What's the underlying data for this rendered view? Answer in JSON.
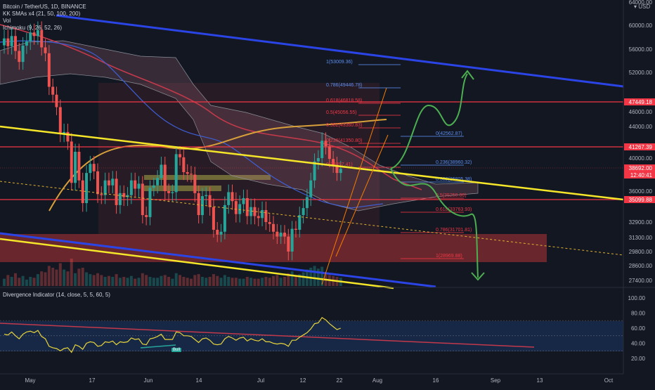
{
  "legend": {
    "symbol": "Bitcoin / TetherUS, 1D, BINANCE",
    "smas": "KK SMAs x4 (21, 50, 100, 200)",
    "vol": "Vol",
    "ichimoku": "Ichimoku (9, 26, 52, 26)",
    "divergence": "Divergence Indicator (14, close, 5, 5, 60, 5)"
  },
  "currency": "USD",
  "bull_tag": "Bull",
  "colors": {
    "background": "#131722",
    "up": "#26a69a",
    "down": "#ef5350",
    "trend_yellow": "#f5e62a",
    "trend_blue": "#2b44e6",
    "arrow_green": "#4caf50",
    "red_line": "#f23645",
    "sma_orange": "#d8a03a",
    "sma_blue": "#3e5fd6",
    "sma_red": "#c2394b",
    "rsi_line": "#e5d33b",
    "fib_text": "#f23645",
    "fib_blue": "#5b8def"
  },
  "chart_data": [
    {
      "type": "candlestick",
      "title": "Bitcoin / TetherUS, 1D, BINANCE",
      "y_axis_ticks": [
        27400,
        28600,
        29800,
        31300,
        32900,
        35099.88,
        36000,
        38692,
        40000,
        41267.39,
        44000,
        46000,
        47449.18,
        52000,
        56000,
        60000,
        64000
      ],
      "y_axis_labels": [
        "27400.00",
        "28600.00",
        "29800.00",
        "31300.00",
        "32900.00",
        "35099.88",
        "36000.00",
        "38692.00",
        "40000.00",
        "41267.39",
        "44000.00",
        "46000.00",
        "47449.18",
        "52000.00",
        "56000.00",
        "60000.00",
        "64000.00"
      ],
      "x_axis_labels": [
        "May",
        "17",
        "Jun",
        "14",
        "Jul",
        "12",
        "22",
        "Aug",
        "16",
        "Sep",
        "13",
        "Oct"
      ],
      "price_tags": [
        {
          "label": "47449.18",
          "color": "#f23645"
        },
        {
          "label": "41267.39",
          "color": "#f23645"
        },
        {
          "label": "38692.00",
          "color": "#f23645"
        },
        {
          "label": "12:40:41",
          "color": "#f23645"
        },
        {
          "label": "35099.88",
          "color": "#f23645"
        }
      ],
      "horizontal_levels": [
        47449.18,
        41267.39,
        35099.88
      ],
      "fib_levels_down": [
        {
          "label": "1(53009.36)",
          "value": 53009.36
        },
        {
          "label": "0.786(49446.78)",
          "value": 49446.78
        },
        {
          "label": "0.618(46818.58)",
          "value": 46818.58
        },
        {
          "label": "0.5(45056.55)",
          "value": 45056.55
        },
        {
          "label": "0.382(43360.83)",
          "value": 43360.83
        },
        {
          "label": "0.236(41350.80)",
          "value": 41350.8
        },
        {
          "label": "0(38297.41)",
          "value": 38297.41
        }
      ],
      "fib_levels_up": [
        {
          "label": "0(42562.87)",
          "value": 42562.87
        },
        {
          "label": "0.236(38960.32)",
          "value": 38960.32
        },
        {
          "label": "0.382(36805.38)",
          "value": 36805.38
        },
        {
          "label": "0.5(35250.86)",
          "value": 35250.86
        },
        {
          "label": "0.618(33763.93)",
          "value": 33763.93
        },
        {
          "label": "0.786(31701.81)",
          "value": 31701.81
        },
        {
          "label": "1(28969.88)",
          "value": 28969.88
        }
      ],
      "close_series": [
        57800,
        56500,
        58200,
        55700,
        53800,
        56600,
        57300,
        58800,
        58200,
        59200,
        56300,
        55300,
        49800,
        48600,
        46700,
        43100,
        43300,
        42100,
        37000,
        40800,
        37300,
        34800,
        38200,
        39300,
        38400,
        35700,
        35600,
        37300,
        36700,
        37500,
        34600,
        35800,
        35400,
        35600,
        37300,
        36300,
        36900,
        33600,
        33400,
        36400,
        36700,
        37600,
        39200,
        36000,
        35800,
        35900,
        40500,
        40100,
        38300,
        38100,
        38000,
        35800,
        33600,
        35500,
        35600,
        34400,
        32100,
        31600,
        31900,
        34600,
        35900,
        35000,
        33700,
        34700,
        35300,
        33500,
        34400,
        33500,
        33300,
        34100,
        32900,
        32700,
        31900,
        31400,
        31800,
        31400,
        29800,
        32200,
        32100,
        33600,
        34300,
        35400,
        37300,
        39600,
        40000,
        42200,
        41500,
        39900,
        39200,
        38200,
        38700
      ]
    },
    {
      "type": "line",
      "title": "Divergence Indicator (14, close, 5, 5, 60, 5)",
      "y_axis_labels": [
        "100.00",
        "80.00",
        "60.00",
        "40.00",
        "20.00"
      ],
      "bands": [
        70,
        50,
        30
      ],
      "series": [
        {
          "values": [
            52,
            51,
            55,
            50,
            46,
            52,
            55,
            56,
            54,
            57,
            49,
            46,
            36,
            34,
            33,
            30,
            33,
            34,
            28,
            38,
            36,
            32,
            40,
            42,
            41,
            36,
            37,
            42,
            41,
            43,
            38,
            42,
            41,
            42,
            47,
            45,
            46,
            39,
            38,
            46,
            47,
            49,
            52,
            45,
            45,
            45,
            55,
            54,
            50,
            50,
            49,
            45,
            41,
            46,
            47,
            44,
            39,
            38,
            39,
            46,
            49,
            47,
            44,
            47,
            48,
            43,
            46,
            44,
            43,
            46,
            42,
            42,
            40,
            39,
            40,
            39,
            36,
            44,
            44,
            48,
            51,
            54,
            59,
            66,
            67,
            74,
            71,
            66,
            62,
            58,
            60
          ]
        }
      ]
    }
  ]
}
